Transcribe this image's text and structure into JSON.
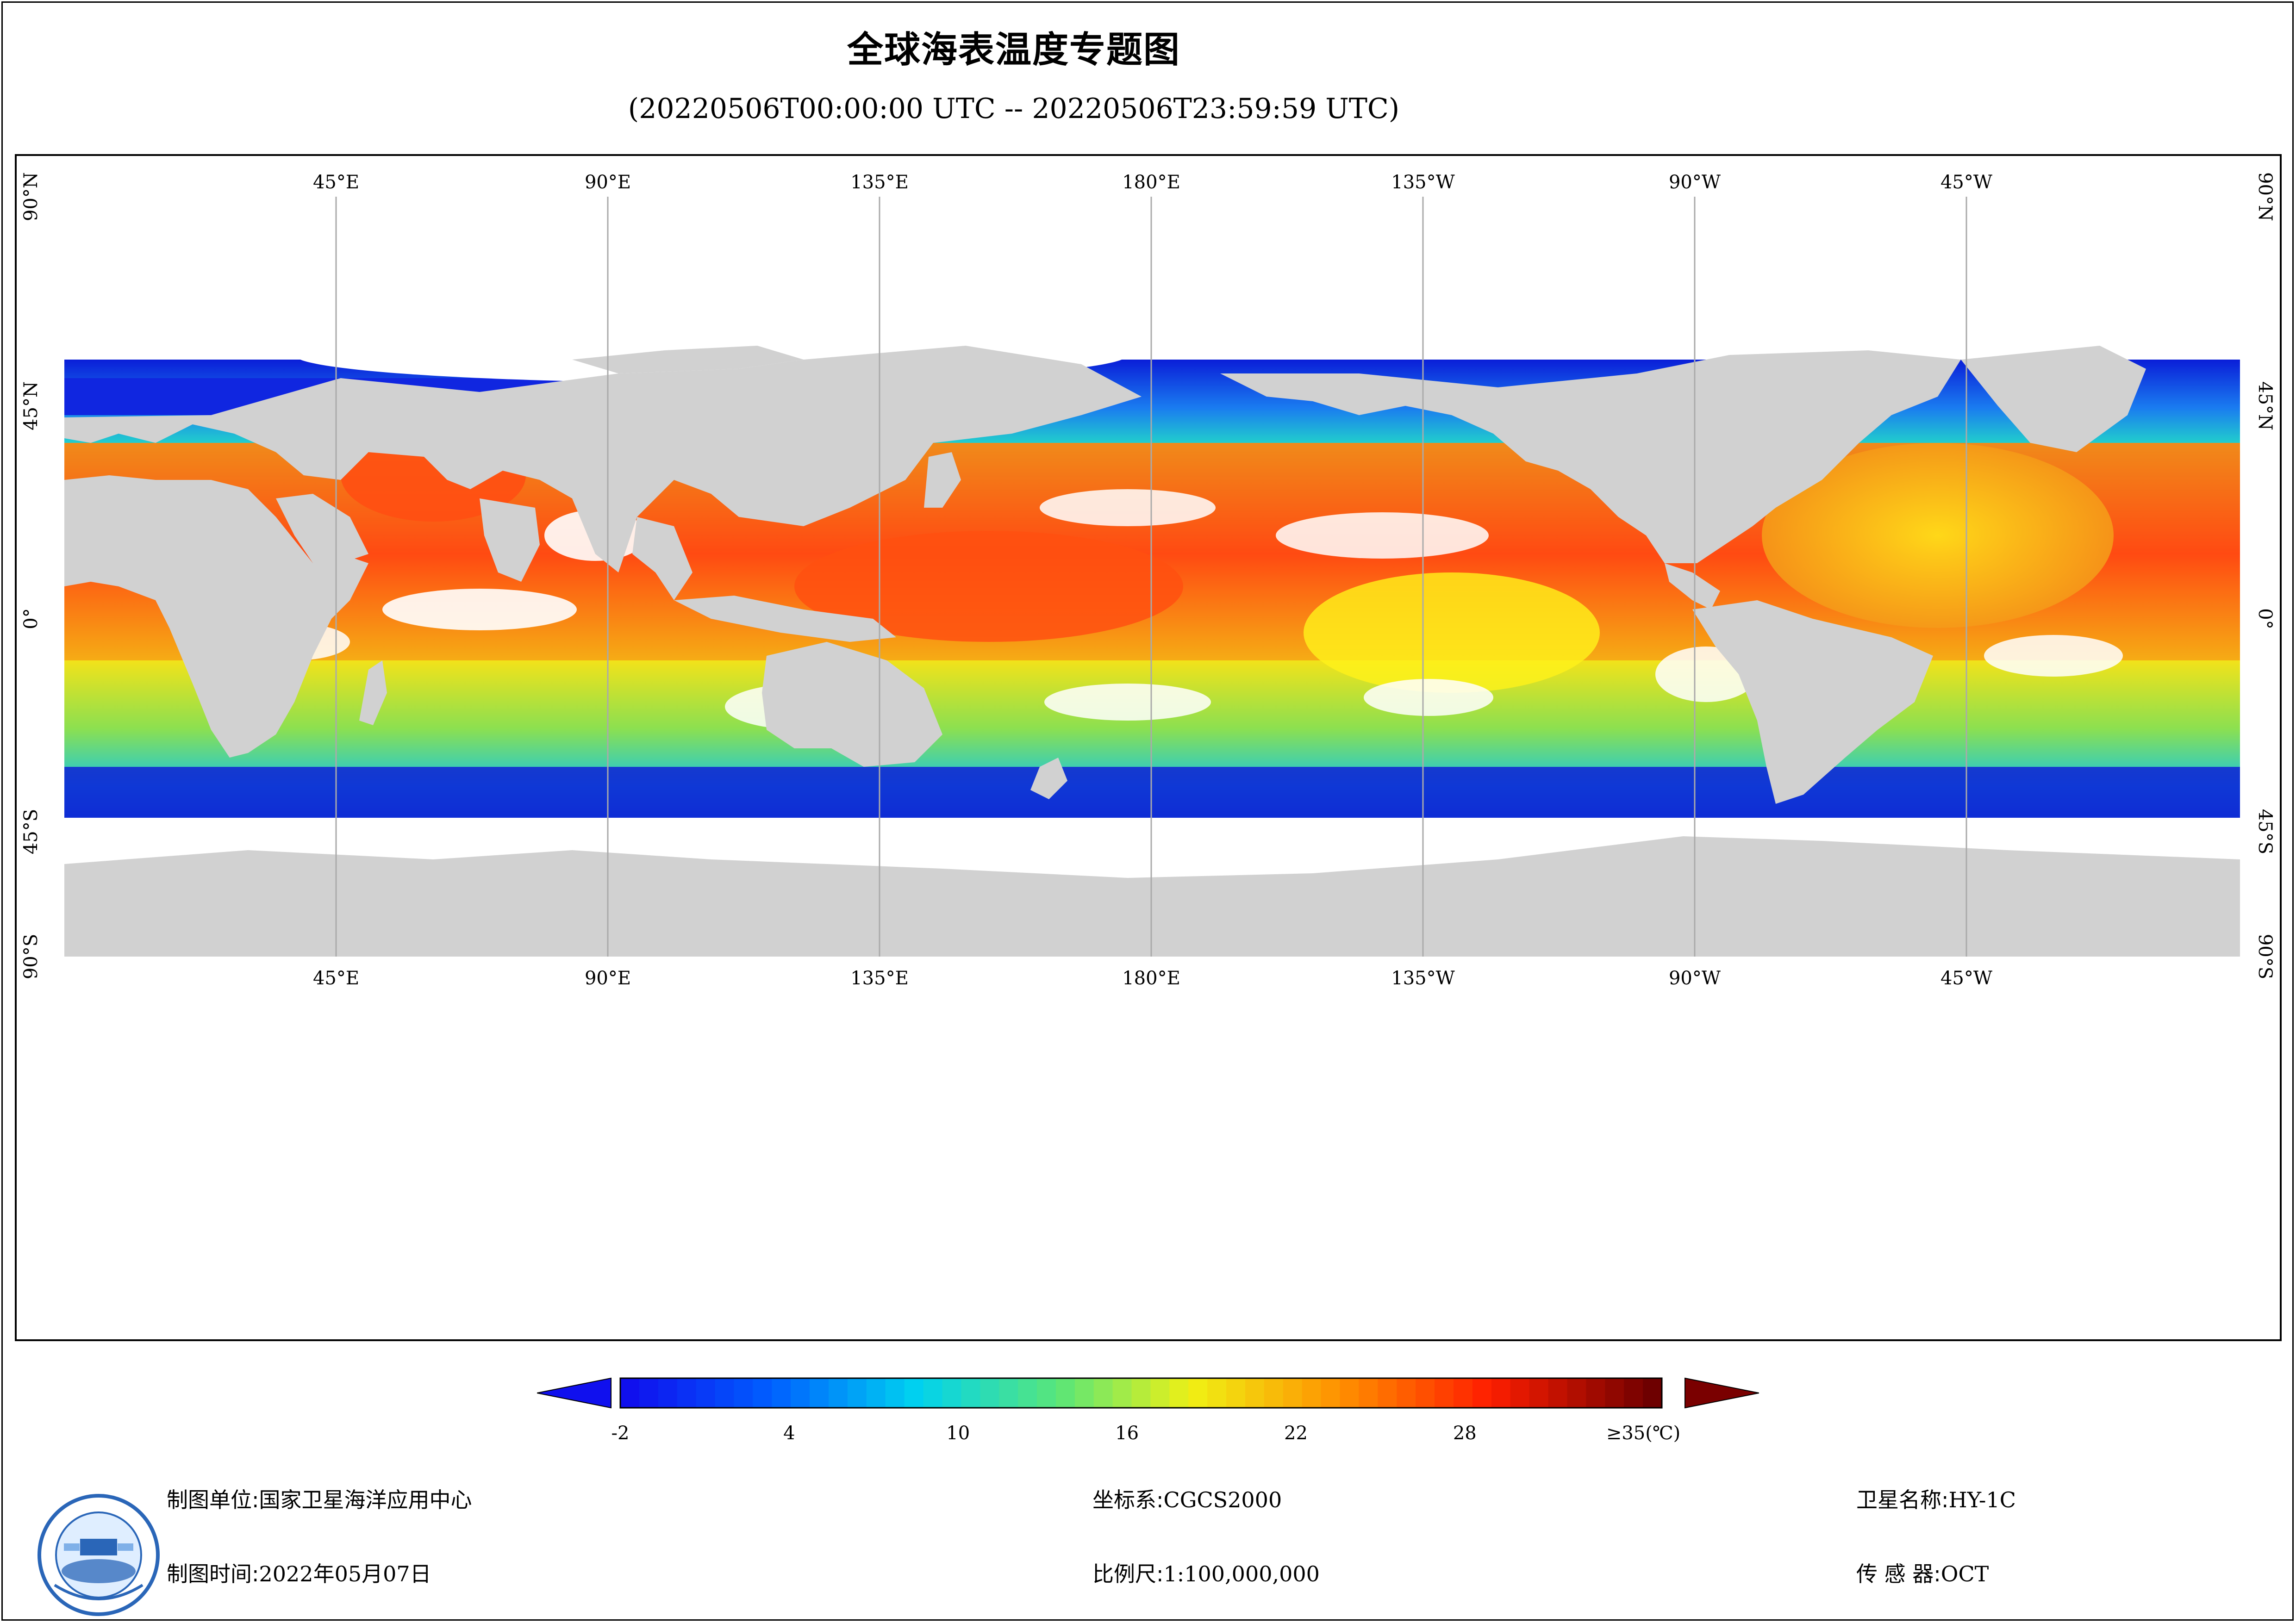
{
  "title": "全球海表温度专题图",
  "subtitle": "(20220506T00:00:00 UTC -- 20220506T23:59:59 UTC)",
  "map": {
    "top_lon_labels": [
      "45°E",
      "90°E",
      "135°E",
      "180°E",
      "135°W",
      "90°W",
      "45°W"
    ],
    "bottom_lon_labels": [
      "45°E",
      "90°E",
      "135°E",
      "180°E",
      "135°W",
      "90°W",
      "45°W"
    ],
    "lat_labels": [
      "90°N",
      "45°N",
      "0°",
      "45°S",
      "90°S"
    ],
    "colors": {
      "land": "#d1d1d1",
      "no_data": "#ffffff",
      "grid": "#aaaaaa"
    }
  },
  "colorbar": {
    "tick_labels": [
      "-2",
      "4",
      "10",
      "16",
      "22",
      "28",
      "≥35(℃)"
    ],
    "min": -2,
    "max": 35,
    "unit": "℃",
    "under_color": "#1010ee",
    "over_color": "#7a0000"
  },
  "footer": {
    "unit_label": "制图单位:",
    "unit_value": "国家卫星海洋应用中心",
    "time_label": "制图时间:",
    "time_value": "2022年05月07日",
    "crs_label": "坐标系:",
    "crs_value": "CGCS2000",
    "scale_label": "比例尺:",
    "scale_value": "1:100,000,000",
    "satellite_label": "卫星名称:",
    "satellite_value": "HY-1C",
    "sensor_label": "传 感 器:",
    "sensor_value": "OCT"
  }
}
